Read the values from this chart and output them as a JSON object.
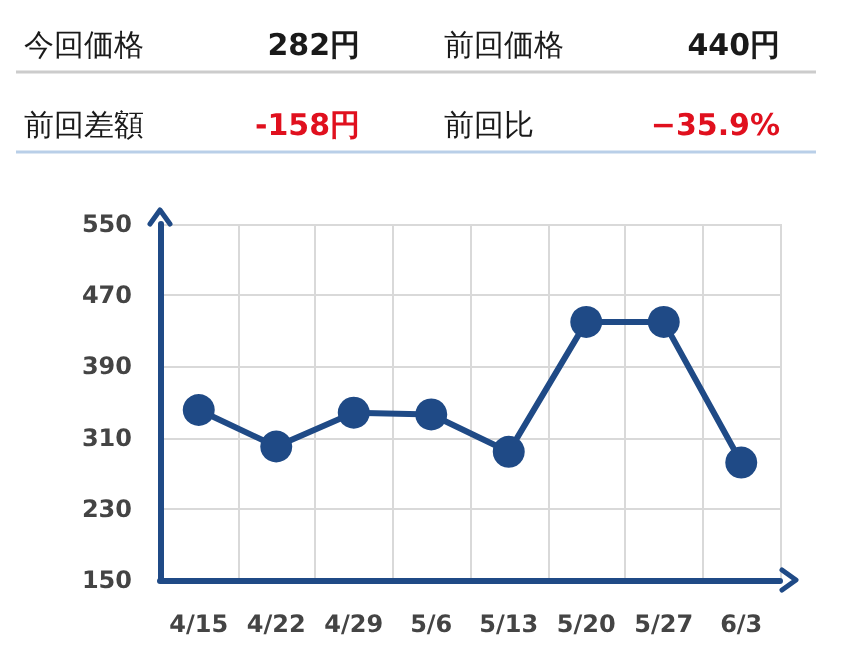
{
  "chart_data": {
    "type": "line",
    "categories": [
      "4/15",
      "4/22",
      "4/29",
      "5/6",
      "5/13",
      "5/20",
      "5/27",
      "6/3"
    ],
    "series": [
      {
        "color": "#1f4a86",
        "values": [
          341,
          300,
          338,
          336,
          294,
          440,
          440,
          282
        ]
      }
    ],
    "ylim": [
      150,
      550
    ],
    "yticks": [
      150,
      230,
      310,
      390,
      470,
      550
    ],
    "grid": true,
    "marker": "circle",
    "line_style": "solid",
    "annotations": [
      "今回価格",
      "282円",
      "前回価格",
      "440円",
      "前回差額",
      "-158円",
      "前回比",
      "−35.9%"
    ]
  }
}
